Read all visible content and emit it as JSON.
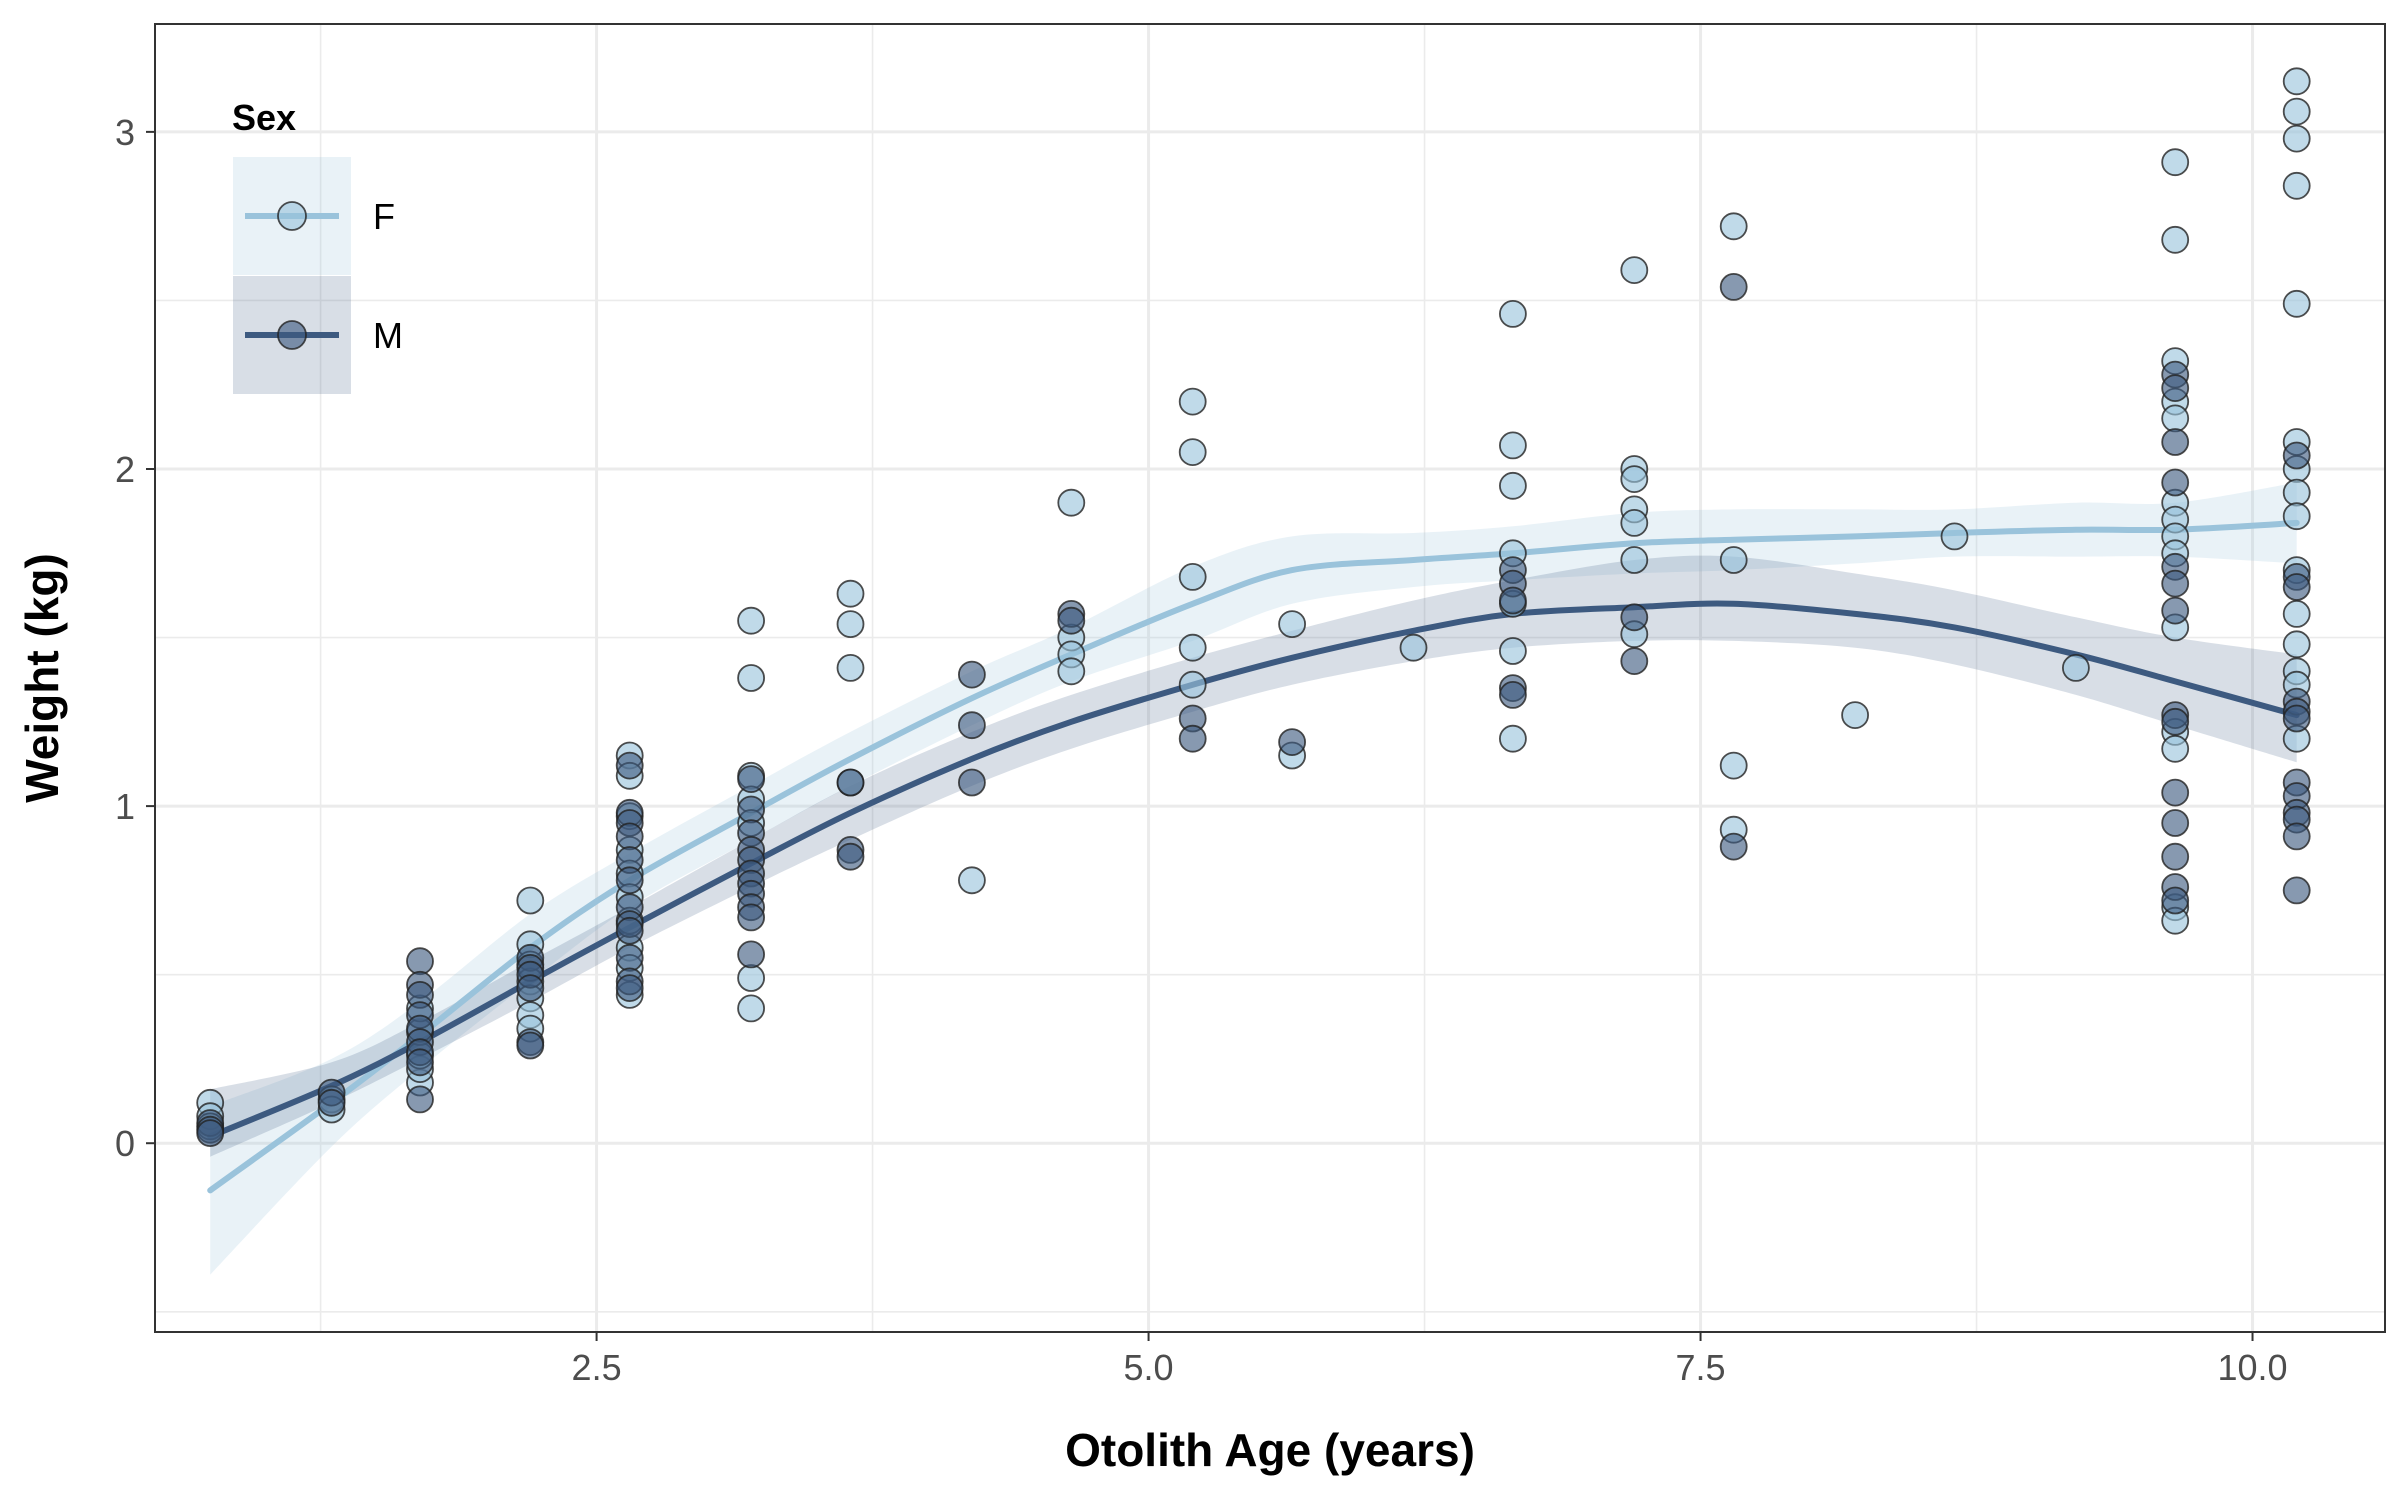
{
  "chart_data": {
    "type": "scatter",
    "xlabel": "Otolith Age (years)",
    "ylabel": "Weight (kg)",
    "xlim": [
      0.5,
      10.6
    ],
    "ylim": [
      -0.56,
      3.32
    ],
    "x_ticks": [
      2.5,
      5.0,
      7.5,
      10.0
    ],
    "x_tick_labels": [
      "2.5",
      "5.0",
      "7.5",
      "10.0"
    ],
    "y_ticks": [
      0,
      1,
      2,
      3
    ],
    "y_tick_labels": [
      "0",
      "1",
      "2",
      "3"
    ],
    "grid": true,
    "legend": {
      "title": "Sex",
      "placement": "top-left",
      "entries": [
        "F",
        "M"
      ]
    },
    "colors": {
      "F": "#9ac3db",
      "M": "#3d5a80"
    },
    "series": [
      {
        "name": "F",
        "points": [
          [
            0.75,
            0.12
          ],
          [
            0.75,
            0.08
          ],
          [
            0.75,
            0.05
          ],
          [
            1.3,
            0.13
          ],
          [
            1.3,
            0.1
          ],
          [
            1.7,
            0.18
          ],
          [
            1.7,
            0.22
          ],
          [
            1.7,
            0.26
          ],
          [
            1.7,
            0.33
          ],
          [
            1.7,
            0.4
          ],
          [
            2.2,
            0.72
          ],
          [
            2.2,
            0.59
          ],
          [
            2.2,
            0.53
          ],
          [
            2.2,
            0.48
          ],
          [
            2.2,
            0.43
          ],
          [
            2.2,
            0.38
          ],
          [
            2.2,
            0.34
          ],
          [
            2.65,
            1.15
          ],
          [
            2.65,
            1.09
          ],
          [
            2.65,
            0.97
          ],
          [
            2.65,
            0.87
          ],
          [
            2.65,
            0.8
          ],
          [
            2.65,
            0.73
          ],
          [
            2.65,
            0.66
          ],
          [
            2.65,
            0.58
          ],
          [
            2.65,
            0.52
          ],
          [
            2.65,
            0.44
          ],
          [
            3.2,
            1.55
          ],
          [
            3.2,
            1.38
          ],
          [
            3.2,
            1.09
          ],
          [
            3.2,
            1.02
          ],
          [
            3.2,
            0.95
          ],
          [
            3.2,
            0.49
          ],
          [
            3.2,
            0.4
          ],
          [
            3.65,
            1.63
          ],
          [
            3.65,
            1.54
          ],
          [
            3.65,
            1.41
          ],
          [
            3.65,
            1.07
          ],
          [
            4.2,
            0.78
          ],
          [
            4.65,
            1.9
          ],
          [
            4.65,
            1.5
          ],
          [
            4.65,
            1.45
          ],
          [
            4.65,
            1.4
          ],
          [
            5.2,
            2.2
          ],
          [
            5.2,
            2.05
          ],
          [
            5.2,
            1.68
          ],
          [
            5.2,
            1.47
          ],
          [
            5.2,
            1.36
          ],
          [
            5.65,
            1.54
          ],
          [
            5.65,
            1.15
          ],
          [
            6.2,
            1.47
          ],
          [
            6.65,
            2.46
          ],
          [
            6.65,
            2.07
          ],
          [
            6.65,
            1.95
          ],
          [
            6.65,
            1.75
          ],
          [
            6.65,
            1.6
          ],
          [
            6.65,
            1.46
          ],
          [
            6.65,
            1.2
          ],
          [
            7.2,
            2.59
          ],
          [
            7.2,
            2.0
          ],
          [
            7.2,
            1.97
          ],
          [
            7.2,
            1.88
          ],
          [
            7.2,
            1.84
          ],
          [
            7.2,
            1.73
          ],
          [
            7.2,
            1.51
          ],
          [
            7.65,
            2.72
          ],
          [
            7.65,
            1.73
          ],
          [
            7.65,
            1.12
          ],
          [
            7.65,
            0.93
          ],
          [
            8.2,
            1.27
          ],
          [
            8.65,
            1.8
          ],
          [
            9.2,
            1.41
          ],
          [
            9.65,
            2.91
          ],
          [
            9.65,
            2.68
          ],
          [
            9.65,
            2.32
          ],
          [
            9.65,
            2.2
          ],
          [
            9.65,
            2.15
          ],
          [
            9.65,
            1.9
          ],
          [
            9.65,
            1.85
          ],
          [
            9.65,
            1.8
          ],
          [
            9.65,
            1.75
          ],
          [
            9.65,
            1.53
          ],
          [
            9.65,
            1.22
          ],
          [
            9.65,
            1.17
          ],
          [
            9.65,
            0.7
          ],
          [
            9.65,
            0.66
          ],
          [
            10.2,
            3.15
          ],
          [
            10.2,
            3.06
          ],
          [
            10.2,
            2.98
          ],
          [
            10.2,
            2.84
          ],
          [
            10.2,
            2.49
          ],
          [
            10.2,
            2.08
          ],
          [
            10.2,
            2.0
          ],
          [
            10.2,
            1.93
          ],
          [
            10.2,
            1.86
          ],
          [
            10.2,
            1.7
          ],
          [
            10.2,
            1.57
          ],
          [
            10.2,
            1.48
          ],
          [
            10.2,
            1.4
          ],
          [
            10.2,
            1.36
          ],
          [
            10.2,
            1.2
          ]
        ],
        "smooth": [
          [
            0.75,
            -0.14
          ],
          [
            1.3,
            0.12
          ],
          [
            1.7,
            0.32
          ],
          [
            2.2,
            0.58
          ],
          [
            2.65,
            0.78
          ],
          [
            3.2,
            0.98
          ],
          [
            3.65,
            1.14
          ],
          [
            4.2,
            1.32
          ],
          [
            4.65,
            1.45
          ],
          [
            5.2,
            1.6
          ],
          [
            5.65,
            1.7
          ],
          [
            6.2,
            1.73
          ],
          [
            6.65,
            1.75
          ],
          [
            7.2,
            1.78
          ],
          [
            7.65,
            1.79
          ],
          [
            8.2,
            1.8
          ],
          [
            8.65,
            1.81
          ],
          [
            9.2,
            1.82
          ],
          [
            9.65,
            1.82
          ],
          [
            10.2,
            1.84
          ]
        ],
        "band": [
          [
            0.75,
            -0.39,
            0.11
          ],
          [
            1.3,
            -0.01,
            0.25
          ],
          [
            1.7,
            0.22,
            0.42
          ],
          [
            2.2,
            0.48,
            0.68
          ],
          [
            2.65,
            0.7,
            0.86
          ],
          [
            3.2,
            0.9,
            1.06
          ],
          [
            3.65,
            1.06,
            1.22
          ],
          [
            4.2,
            1.24,
            1.4
          ],
          [
            4.65,
            1.37,
            1.53
          ],
          [
            5.2,
            1.49,
            1.71
          ],
          [
            5.65,
            1.6,
            1.8
          ],
          [
            6.2,
            1.65,
            1.81
          ],
          [
            6.65,
            1.67,
            1.83
          ],
          [
            7.2,
            1.69,
            1.87
          ],
          [
            7.65,
            1.7,
            1.88
          ],
          [
            8.2,
            1.72,
            1.88
          ],
          [
            8.65,
            1.74,
            1.88
          ],
          [
            9.2,
            1.74,
            1.9
          ],
          [
            9.65,
            1.74,
            1.9
          ],
          [
            10.2,
            1.72,
            1.96
          ]
        ]
      },
      {
        "name": "M",
        "points": [
          [
            0.75,
            0.06
          ],
          [
            0.75,
            0.04
          ],
          [
            0.75,
            0.03
          ],
          [
            1.3,
            0.15
          ],
          [
            1.3,
            0.12
          ],
          [
            1.7,
            0.54
          ],
          [
            1.7,
            0.47
          ],
          [
            1.7,
            0.44
          ],
          [
            1.7,
            0.38
          ],
          [
            1.7,
            0.34
          ],
          [
            1.7,
            0.3
          ],
          [
            1.7,
            0.27
          ],
          [
            1.7,
            0.24
          ],
          [
            1.7,
            0.13
          ],
          [
            2.2,
            0.55
          ],
          [
            2.2,
            0.52
          ],
          [
            2.2,
            0.5
          ],
          [
            2.2,
            0.46
          ],
          [
            2.2,
            0.3
          ],
          [
            2.2,
            0.29
          ],
          [
            2.65,
            1.12
          ],
          [
            2.65,
            0.98
          ],
          [
            2.65,
            0.95
          ],
          [
            2.65,
            0.91
          ],
          [
            2.65,
            0.84
          ],
          [
            2.65,
            0.78
          ],
          [
            2.65,
            0.7
          ],
          [
            2.65,
            0.65
          ],
          [
            2.65,
            0.63
          ],
          [
            2.65,
            0.55
          ],
          [
            2.65,
            0.48
          ],
          [
            2.65,
            0.46
          ],
          [
            3.2,
            1.08
          ],
          [
            3.2,
            0.99
          ],
          [
            3.2,
            0.92
          ],
          [
            3.2,
            0.87
          ],
          [
            3.2,
            0.84
          ],
          [
            3.2,
            0.8
          ],
          [
            3.2,
            0.77
          ],
          [
            3.2,
            0.74
          ],
          [
            3.2,
            0.7
          ],
          [
            3.2,
            0.67
          ],
          [
            3.2,
            0.56
          ],
          [
            3.65,
            1.07
          ],
          [
            3.65,
            0.87
          ],
          [
            3.65,
            0.85
          ],
          [
            4.2,
            1.39
          ],
          [
            4.2,
            1.24
          ],
          [
            4.2,
            1.07
          ],
          [
            4.65,
            1.57
          ],
          [
            4.65,
            1.55
          ],
          [
            5.2,
            1.26
          ],
          [
            5.2,
            1.2
          ],
          [
            5.65,
            1.19
          ],
          [
            6.65,
            1.7
          ],
          [
            6.65,
            1.66
          ],
          [
            6.65,
            1.61
          ],
          [
            6.65,
            1.35
          ],
          [
            6.65,
            1.33
          ],
          [
            7.2,
            1.56
          ],
          [
            7.2,
            1.43
          ],
          [
            7.65,
            2.54
          ],
          [
            7.65,
            0.88
          ],
          [
            9.65,
            2.28
          ],
          [
            9.65,
            2.24
          ],
          [
            9.65,
            2.08
          ],
          [
            9.65,
            1.96
          ],
          [
            9.65,
            1.71
          ],
          [
            9.65,
            1.66
          ],
          [
            9.65,
            1.58
          ],
          [
            9.65,
            1.27
          ],
          [
            9.65,
            1.25
          ],
          [
            9.65,
            1.04
          ],
          [
            9.65,
            0.95
          ],
          [
            9.65,
            0.85
          ],
          [
            9.65,
            0.76
          ],
          [
            9.65,
            0.72
          ],
          [
            10.2,
            2.04
          ],
          [
            10.2,
            1.68
          ],
          [
            10.2,
            1.65
          ],
          [
            10.2,
            1.31
          ],
          [
            10.2,
            1.28
          ],
          [
            10.2,
            1.26
          ],
          [
            10.2,
            1.07
          ],
          [
            10.2,
            1.03
          ],
          [
            10.2,
            0.98
          ],
          [
            10.2,
            0.96
          ],
          [
            10.2,
            0.91
          ],
          [
            10.2,
            0.75
          ]
        ],
        "smooth": [
          [
            0.75,
            0.02
          ],
          [
            1.3,
            0.17
          ],
          [
            1.7,
            0.3
          ],
          [
            2.2,
            0.48
          ],
          [
            2.65,
            0.64
          ],
          [
            3.2,
            0.83
          ],
          [
            3.65,
            0.98
          ],
          [
            4.2,
            1.14
          ],
          [
            4.65,
            1.25
          ],
          [
            5.2,
            1.36
          ],
          [
            5.65,
            1.44
          ],
          [
            6.2,
            1.52
          ],
          [
            6.65,
            1.57
          ],
          [
            7.2,
            1.59
          ],
          [
            7.65,
            1.6
          ],
          [
            8.2,
            1.57
          ],
          [
            8.65,
            1.53
          ],
          [
            9.2,
            1.45
          ],
          [
            9.65,
            1.37
          ],
          [
            10.2,
            1.27
          ]
        ],
        "band": [
          [
            0.75,
            -0.04,
            0.16
          ],
          [
            1.3,
            0.12,
            0.24
          ],
          [
            1.7,
            0.25,
            0.36
          ],
          [
            2.2,
            0.42,
            0.54
          ],
          [
            2.65,
            0.58,
            0.7
          ],
          [
            3.2,
            0.76,
            0.9
          ],
          [
            3.65,
            0.9,
            1.06
          ],
          [
            4.2,
            1.06,
            1.22
          ],
          [
            4.65,
            1.17,
            1.33
          ],
          [
            5.2,
            1.28,
            1.44
          ],
          [
            5.65,
            1.36,
            1.52
          ],
          [
            6.2,
            1.43,
            1.61
          ],
          [
            6.65,
            1.47,
            1.67
          ],
          [
            7.2,
            1.49,
            1.73
          ],
          [
            7.65,
            1.49,
            1.74
          ],
          [
            8.2,
            1.47,
            1.69
          ],
          [
            8.65,
            1.42,
            1.64
          ],
          [
            9.2,
            1.33,
            1.56
          ],
          [
            9.65,
            1.24,
            1.5
          ],
          [
            10.2,
            1.13,
            1.45
          ]
        ]
      }
    ]
  }
}
